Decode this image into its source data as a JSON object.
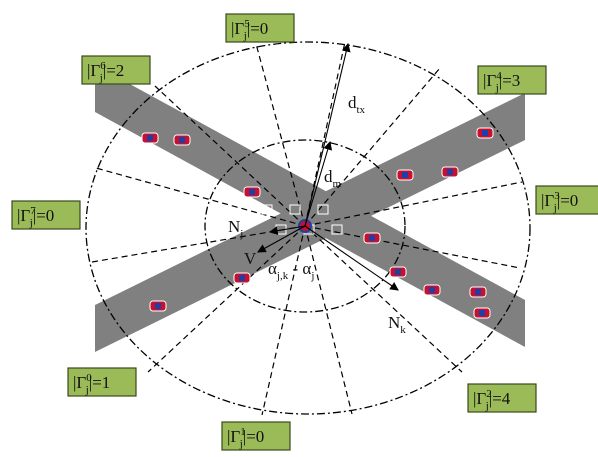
{
  "sectors": [
    {
      "symbol": "|Γ",
      "sub": "j",
      "sup": "5",
      "tail": "|=0"
    },
    {
      "symbol": "|Γ",
      "sub": "j",
      "sup": "6",
      "tail": "|=2"
    },
    {
      "symbol": "|Γ",
      "sub": "j",
      "sup": "4",
      "tail": "|=3"
    },
    {
      "symbol": "|Γ",
      "sub": "j",
      "sup": "3",
      "tail": "|=0"
    },
    {
      "symbol": "|Γ",
      "sub": "j",
      "sup": "7",
      "tail": "|=0"
    },
    {
      "symbol": "|Γ",
      "sub": "j",
      "sup": "0",
      "tail": "|=1"
    },
    {
      "symbol": "|Γ",
      "sub": "j",
      "sup": "2",
      "tail": "|=4"
    },
    {
      "symbol": "|Γ",
      "sub": "j",
      "sup": "1",
      "tail": "|=0"
    }
  ],
  "annotations": {
    "d_tx": {
      "main": "d",
      "sub": "tx"
    },
    "d_m": {
      "main": "d",
      "sub": "m"
    },
    "N_j": {
      "main": "N",
      "sub": "j"
    },
    "N_k": {
      "main": "N",
      "sub": "k"
    },
    "V": {
      "main": "V"
    },
    "angle": {
      "main": "α",
      "sub": "j,k",
      "main2": " - α",
      "sub2": "j"
    }
  }
}
